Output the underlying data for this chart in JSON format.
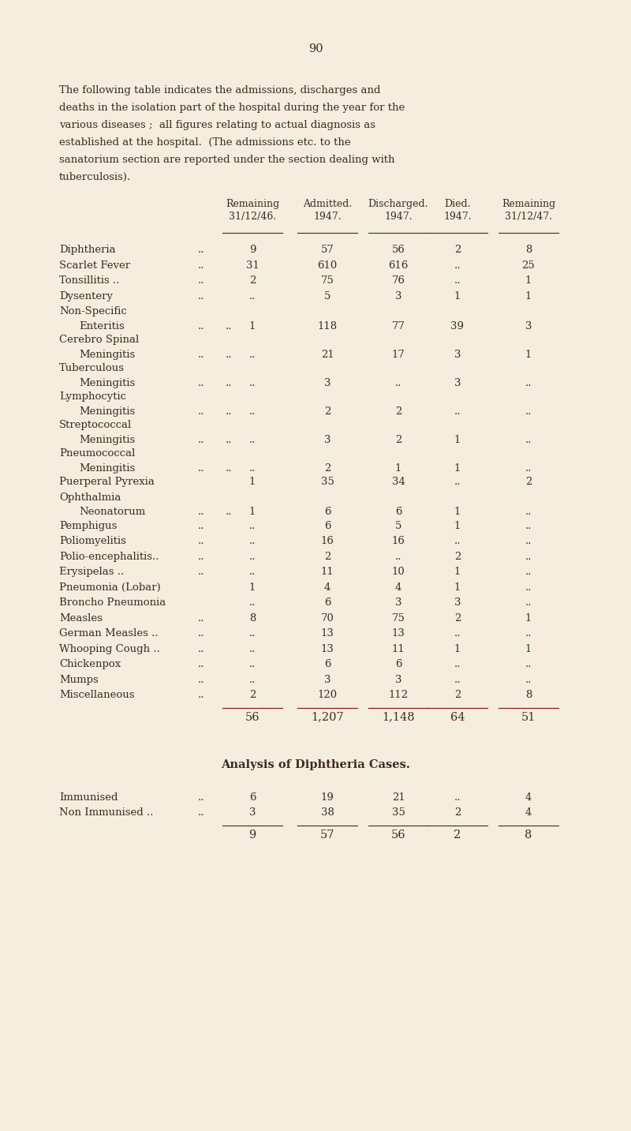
{
  "page_number": "90",
  "intro_text": [
    "The following table indicates the admissions, discharges and",
    "deaths in the isolation part of the hospital during the year for the",
    "various diseases ;  all figures relating to actual diagnosis as",
    "established at the hospital.  (The admissions etc. to the",
    "sanatorium section are reported under the section dealing with",
    "tuberculosis)."
  ],
  "col_headers_line1": [
    "Remaining",
    "Admitted.",
    "Discharged.",
    "Died.",
    "Remaining"
  ],
  "col_headers_line2": [
    "31/12/46.",
    "1947.",
    "1947.",
    "1947.",
    "31/12/47."
  ],
  "table_rows": [
    {
      "label": "Diphtheria",
      "label2": "",
      "rem46": "9",
      "adm": "57",
      "dis": "56",
      "died": "2",
      "rem47": "8",
      "dots": true
    },
    {
      "label": "Scarlet Fever",
      "label2": "",
      "rem46": "31",
      "adm": "610",
      "dis": "616",
      "died": "..",
      "rem47": "25",
      "dots": true
    },
    {
      "label": "Tonsillitis ..",
      "label2": "",
      "rem46": "2",
      "adm": "75",
      "dis": "76",
      "died": "..",
      "rem47": "1",
      "dots": true
    },
    {
      "label": "Dysentery",
      "label2": "",
      "rem46": "..",
      "adm": "5",
      "dis": "3",
      "died": "1",
      "rem47": "1",
      "dots": true
    },
    {
      "label": "Non-Specific",
      "label2": "Enteritis",
      "rem46": "1",
      "adm": "118",
      "dis": "77",
      "died": "39",
      "rem47": "3",
      "dots": true
    },
    {
      "label": "Cerebro Spinal",
      "label2": "Meningitis",
      "rem46": "..",
      "adm": "21",
      "dis": "17",
      "died": "3",
      "rem47": "1",
      "dots": true
    },
    {
      "label": "Tuberculous",
      "label2": "Meningitis",
      "rem46": "..",
      "adm": "3",
      "dis": "..",
      "died": "3",
      "rem47": "..",
      "dots": true
    },
    {
      "label": "Lymphocytic",
      "label2": "Meningitis",
      "rem46": "..",
      "adm": "2",
      "dis": "2",
      "died": "..",
      "rem47": "..",
      "dots": true
    },
    {
      "label": "Streptococcal",
      "label2": "Meningitis",
      "rem46": "..",
      "adm": "3",
      "dis": "2",
      "died": "1",
      "rem47": "..",
      "dots": true
    },
    {
      "label": "Pneumococcal",
      "label2": "Meningitis",
      "rem46": "..",
      "adm": "2",
      "dis": "1",
      "died": "1",
      "rem47": "..",
      "dots": true
    },
    {
      "label": "Puerperal Pyrexia",
      "label2": "",
      "rem46": "1",
      "adm": "35",
      "dis": "34",
      "died": "..",
      "rem47": "2",
      "dots": false
    },
    {
      "label": "Ophthalmia",
      "label2": "Neonatorum",
      "rem46": "1",
      "adm": "6",
      "dis": "6",
      "died": "1",
      "rem47": "..",
      "dots": true
    },
    {
      "label": "Pemphigus",
      "label2": "",
      "rem46": "..",
      "adm": "6",
      "dis": "5",
      "died": "1",
      "rem47": "..",
      "dots": true
    },
    {
      "label": "Poliomyelitis",
      "label2": "",
      "rem46": "..",
      "adm": "16",
      "dis": "16",
      "died": "..",
      "rem47": "..",
      "dots": true
    },
    {
      "label": "Polio-encephalitis..",
      "label2": "",
      "rem46": "..",
      "adm": "2",
      "dis": "..",
      "died": "2",
      "rem47": "..",
      "dots": true
    },
    {
      "label": "Erysipelas ..",
      "label2": "",
      "rem46": "..",
      "adm": "11",
      "dis": "10",
      "died": "1",
      "rem47": "..",
      "dots": true
    },
    {
      "label": "Pneumonia (Lobar)",
      "label2": "",
      "rem46": "1",
      "adm": "4",
      "dis": "4",
      "died": "1",
      "rem47": "..",
      "dots": false
    },
    {
      "label": "Broncho Pneumonia",
      "label2": "",
      "rem46": "..",
      "adm": "6",
      "dis": "3",
      "died": "3",
      "rem47": "..",
      "dots": false
    },
    {
      "label": "Measles",
      "label2": "",
      "rem46": "8",
      "adm": "70",
      "dis": "75",
      "died": "2",
      "rem47": "1",
      "dots": true
    },
    {
      "label": "German Measles ..",
      "label2": "",
      "rem46": "..",
      "adm": "13",
      "dis": "13",
      "died": "..",
      "rem47": "..",
      "dots": true
    },
    {
      "label": "Whooping Cough ..",
      "label2": "",
      "rem46": "..",
      "adm": "13",
      "dis": "11",
      "died": "1",
      "rem47": "1",
      "dots": true
    },
    {
      "label": "Chickenpox",
      "label2": "",
      "rem46": "..",
      "adm": "6",
      "dis": "6",
      "died": "..",
      "rem47": "..",
      "dots": true
    },
    {
      "label": "Mumps",
      "label2": "",
      "rem46": "..",
      "adm": "3",
      "dis": "3",
      "died": "..",
      "rem47": "..",
      "dots": true
    },
    {
      "label": "Miscellaneous",
      "label2": "",
      "rem46": "2",
      "adm": "120",
      "dis": "112",
      "died": "2",
      "rem47": "8",
      "dots": true
    }
  ],
  "totals": {
    "rem46": "56",
    "adm": "1,207",
    "dis": "1,148",
    "died": "64",
    "rem47": "51"
  },
  "analysis_title": "Analysis of Diphtheria Cases.",
  "analysis_rows": [
    {
      "label": "Immunised",
      "rem46": "6",
      "adm": "19",
      "dis": "21",
      "died": "..",
      "rem47": "4"
    },
    {
      "label": "Non Immunised ..",
      "rem46": "3",
      "adm": "38",
      "dis": "35",
      "died": "2",
      "rem47": "4"
    }
  ],
  "analysis_totals": {
    "rem46": "9",
    "adm": "57",
    "dis": "56",
    "died": "2",
    "rem47": "8"
  },
  "bg_color": "#f5eedf",
  "text_color": "#3d2b1f",
  "font_size": 10.5
}
